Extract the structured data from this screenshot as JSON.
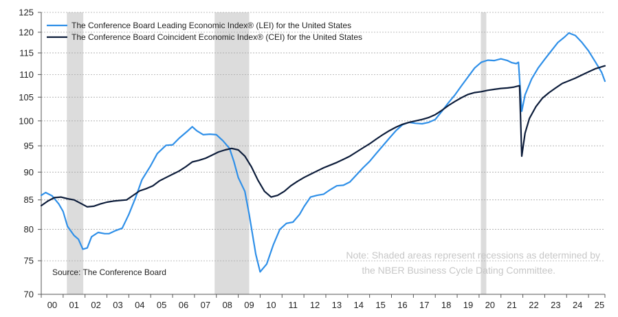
{
  "chart_data": {
    "type": "line",
    "title": "",
    "xlabel": "",
    "ylabel": "",
    "y_scale": "log",
    "ylim": [
      70,
      125
    ],
    "y_ticks": [
      70,
      75,
      80,
      85,
      90,
      95,
      100,
      105,
      110,
      115,
      120,
      125
    ],
    "x_range": [
      2000.0,
      2025.75
    ],
    "x_tick_labels": [
      "00",
      "01",
      "02",
      "03",
      "04",
      "05",
      "06",
      "07",
      "08",
      "09",
      "10",
      "11",
      "12",
      "13",
      "14",
      "15",
      "16",
      "17",
      "18",
      "19",
      "20",
      "21",
      "22",
      "23",
      "24",
      "25"
    ],
    "grid": true,
    "legend_position": "top-left",
    "recessions": [
      {
        "start": 2001.17,
        "end": 2001.92
      },
      {
        "start": 2007.92,
        "end": 2009.5
      },
      {
        "start": 2020.08,
        "end": 2020.33
      }
    ],
    "series": [
      {
        "name": "The Conference Board Leading Economic Index® (LEI) for the United States",
        "color": "#2e8fe8",
        "points": [
          [
            2000.0,
            85.8
          ],
          [
            2000.2,
            86.3
          ],
          [
            2000.5,
            85.7
          ],
          [
            2000.8,
            84.3
          ],
          [
            2001.0,
            83.0
          ],
          [
            2001.2,
            80.5
          ],
          [
            2001.5,
            79.0
          ],
          [
            2001.7,
            78.4
          ],
          [
            2001.9,
            76.8
          ],
          [
            2002.1,
            77.0
          ],
          [
            2002.3,
            78.8
          ],
          [
            2002.6,
            79.5
          ],
          [
            2002.9,
            79.3
          ],
          [
            2003.1,
            79.3
          ],
          [
            2003.4,
            79.8
          ],
          [
            2003.7,
            80.2
          ],
          [
            2004.0,
            82.5
          ],
          [
            2004.3,
            85.3
          ],
          [
            2004.6,
            88.6
          ],
          [
            2005.0,
            91.2
          ],
          [
            2005.3,
            93.5
          ],
          [
            2005.7,
            95.1
          ],
          [
            2006.0,
            95.2
          ],
          [
            2006.3,
            96.5
          ],
          [
            2006.7,
            98.0
          ],
          [
            2006.9,
            98.8
          ],
          [
            2007.1,
            98.0
          ],
          [
            2007.4,
            97.2
          ],
          [
            2007.7,
            97.3
          ],
          [
            2008.0,
            97.2
          ],
          [
            2008.3,
            96.0
          ],
          [
            2008.6,
            94.5
          ],
          [
            2008.8,
            92.0
          ],
          [
            2009.0,
            89.0
          ],
          [
            2009.3,
            86.5
          ],
          [
            2009.5,
            82.5
          ],
          [
            2009.8,
            76.0
          ],
          [
            2010.0,
            73.3
          ],
          [
            2010.3,
            74.5
          ],
          [
            2010.6,
            77.5
          ],
          [
            2010.9,
            80.0
          ],
          [
            2011.2,
            81.0
          ],
          [
            2011.5,
            81.2
          ],
          [
            2011.8,
            82.5
          ],
          [
            2012.0,
            83.8
          ],
          [
            2012.3,
            85.5
          ],
          [
            2012.6,
            85.8
          ],
          [
            2012.9,
            86.0
          ],
          [
            2013.2,
            86.8
          ],
          [
            2013.5,
            87.5
          ],
          [
            2013.8,
            87.6
          ],
          [
            2014.1,
            88.2
          ],
          [
            2014.4,
            89.5
          ],
          [
            2014.7,
            90.8
          ],
          [
            2015.0,
            92.0
          ],
          [
            2015.3,
            93.5
          ],
          [
            2015.6,
            95.0
          ],
          [
            2015.9,
            96.5
          ],
          [
            2016.2,
            98.0
          ],
          [
            2016.5,
            99.2
          ],
          [
            2016.8,
            99.7
          ],
          [
            2017.1,
            99.5
          ],
          [
            2017.4,
            99.4
          ],
          [
            2017.7,
            99.7
          ],
          [
            2018.0,
            100.3
          ],
          [
            2018.3,
            102.0
          ],
          [
            2018.6,
            103.8
          ],
          [
            2018.9,
            105.5
          ],
          [
            2019.2,
            107.5
          ],
          [
            2019.5,
            109.5
          ],
          [
            2019.8,
            111.5
          ],
          [
            2020.1,
            112.8
          ],
          [
            2020.4,
            113.3
          ],
          [
            2020.7,
            113.2
          ],
          [
            2021.0,
            113.6
          ],
          [
            2021.3,
            113.2
          ],
          [
            2021.5,
            112.7
          ],
          [
            2021.7,
            112.5
          ],
          [
            2021.8,
            112.8
          ],
          [
            2021.95,
            102.0
          ],
          [
            2022.1,
            105.5
          ],
          [
            2022.4,
            109.0
          ],
          [
            2022.7,
            111.5
          ],
          [
            2023.0,
            113.5
          ],
          [
            2023.3,
            115.5
          ],
          [
            2023.6,
            117.5
          ],
          [
            2023.9,
            118.8
          ],
          [
            2024.1,
            119.8
          ],
          [
            2024.4,
            119.2
          ],
          [
            2024.7,
            117.5
          ],
          [
            2025.0,
            115.5
          ],
          [
            2025.3,
            113.0
          ],
          [
            2025.6,
            110.5
          ],
          [
            2025.75,
            108.5
          ]
        ]
      },
      {
        "name": "The Conference Board Coincident Economic Index® (CEI) for the United States",
        "color": "#0c1c3a",
        "points": [
          [
            2000.0,
            84.0
          ],
          [
            2000.3,
            84.8
          ],
          [
            2000.6,
            85.4
          ],
          [
            2000.9,
            85.5
          ],
          [
            2001.2,
            85.2
          ],
          [
            2001.5,
            85.0
          ],
          [
            2001.8,
            84.4
          ],
          [
            2002.1,
            83.8
          ],
          [
            2002.4,
            83.9
          ],
          [
            2002.7,
            84.3
          ],
          [
            2003.0,
            84.6
          ],
          [
            2003.3,
            84.8
          ],
          [
            2003.6,
            84.9
          ],
          [
            2003.9,
            85.0
          ],
          [
            2004.2,
            85.8
          ],
          [
            2004.5,
            86.6
          ],
          [
            2004.8,
            87.0
          ],
          [
            2005.1,
            87.5
          ],
          [
            2005.4,
            88.4
          ],
          [
            2005.7,
            89.0
          ],
          [
            2006.0,
            89.6
          ],
          [
            2006.3,
            90.2
          ],
          [
            2006.6,
            91.0
          ],
          [
            2006.9,
            91.9
          ],
          [
            2007.2,
            92.2
          ],
          [
            2007.5,
            92.6
          ],
          [
            2007.8,
            93.2
          ],
          [
            2008.1,
            93.8
          ],
          [
            2008.4,
            94.2
          ],
          [
            2008.7,
            94.5
          ],
          [
            2009.0,
            94.2
          ],
          [
            2009.3,
            93.0
          ],
          [
            2009.6,
            91.0
          ],
          [
            2009.9,
            88.5
          ],
          [
            2010.2,
            86.5
          ],
          [
            2010.5,
            85.5
          ],
          [
            2010.8,
            85.8
          ],
          [
            2011.1,
            86.5
          ],
          [
            2011.4,
            87.5
          ],
          [
            2011.7,
            88.3
          ],
          [
            2012.0,
            89.0
          ],
          [
            2012.3,
            89.6
          ],
          [
            2012.6,
            90.2
          ],
          [
            2012.9,
            90.8
          ],
          [
            2013.2,
            91.3
          ],
          [
            2013.5,
            91.8
          ],
          [
            2013.8,
            92.4
          ],
          [
            2014.1,
            93.0
          ],
          [
            2014.4,
            93.8
          ],
          [
            2014.7,
            94.6
          ],
          [
            2015.0,
            95.4
          ],
          [
            2015.3,
            96.3
          ],
          [
            2015.6,
            97.2
          ],
          [
            2015.9,
            98.0
          ],
          [
            2016.2,
            98.7
          ],
          [
            2016.5,
            99.3
          ],
          [
            2016.8,
            99.7
          ],
          [
            2017.1,
            100.0
          ],
          [
            2017.4,
            100.3
          ],
          [
            2017.7,
            100.7
          ],
          [
            2018.0,
            101.3
          ],
          [
            2018.3,
            102.2
          ],
          [
            2018.6,
            103.2
          ],
          [
            2018.9,
            104.1
          ],
          [
            2019.2,
            104.9
          ],
          [
            2019.5,
            105.6
          ],
          [
            2019.8,
            106.0
          ],
          [
            2020.1,
            106.2
          ],
          [
            2020.4,
            106.5
          ],
          [
            2020.7,
            106.7
          ],
          [
            2021.0,
            106.9
          ],
          [
            2021.3,
            107.0
          ],
          [
            2021.6,
            107.2
          ],
          [
            2021.85,
            107.5
          ],
          [
            2021.95,
            93.0
          ],
          [
            2022.1,
            97.5
          ],
          [
            2022.3,
            100.5
          ],
          [
            2022.6,
            103.0
          ],
          [
            2022.9,
            104.8
          ],
          [
            2023.2,
            106.0
          ],
          [
            2023.5,
            107.0
          ],
          [
            2023.8,
            108.0
          ],
          [
            2024.1,
            108.6
          ],
          [
            2024.4,
            109.2
          ],
          [
            2024.7,
            109.9
          ],
          [
            2025.0,
            110.6
          ],
          [
            2025.3,
            111.3
          ],
          [
            2025.75,
            112.0
          ]
        ]
      }
    ],
    "annotations": {
      "note": "Note: Shaded areas represent recessions as determined by the NBER Business Cycle Dating Committee.",
      "source": "Source: The Conference Board"
    }
  },
  "note_lines": [
    "Note: Shaded areas represent recessions as determined by",
    "the NBER Business Cycle Dating Committee."
  ]
}
